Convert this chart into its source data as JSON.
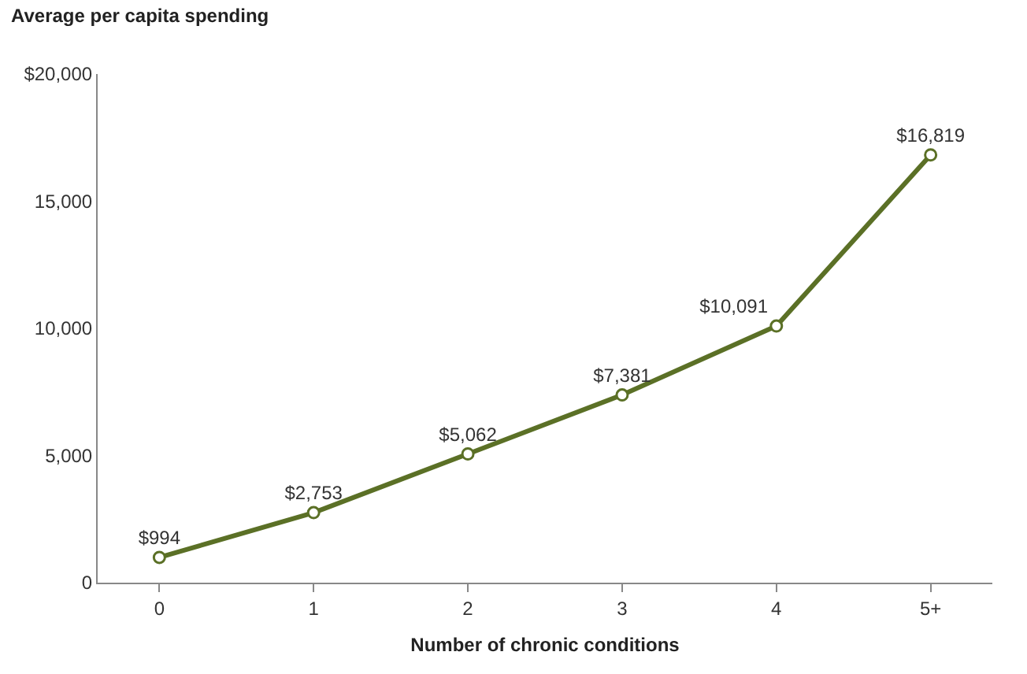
{
  "chart_data": {
    "type": "line",
    "ylabel": "Average per capita spending",
    "xlabel": "Number of chronic conditions",
    "categories": [
      "0",
      "1",
      "2",
      "3",
      "4",
      "5+"
    ],
    "series": [
      {
        "color": "#5b7026",
        "values": [
          994,
          2753,
          5062,
          7381,
          10091,
          16819
        ],
        "value_labels": [
          "$994",
          "$2,753",
          "$5,062",
          "$7,381",
          "$10,091",
          "$16,819"
        ]
      }
    ],
    "ylim": [
      0,
      20000
    ],
    "yticks": [
      0,
      {
        "value": 5000,
        "label": "5,000"
      },
      {
        "value": 10000,
        "label": "10,000"
      },
      {
        "value": 15000,
        "label": "15,000"
      },
      {
        "value": 20000,
        "label": "$20,000"
      }
    ],
    "legend": false,
    "marker": "circle",
    "line_style": "solid"
  }
}
